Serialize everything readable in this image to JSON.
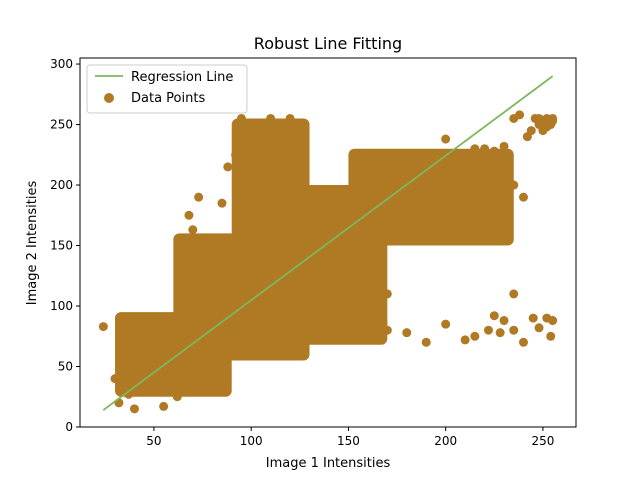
{
  "chart_data": {
    "type": "scatter",
    "title": "Robust Line Fitting",
    "xlabel": "Image 1 Intensities",
    "ylabel": "Image 2 Intensities",
    "xlim": [
      12,
      267
    ],
    "ylim": [
      0,
      305
    ],
    "xticks": [
      50,
      100,
      150,
      200,
      250
    ],
    "yticks": [
      0,
      50,
      100,
      150,
      200,
      250,
      300
    ],
    "grid": false,
    "legend_position": "top-left",
    "colors": {
      "points": "#b07a24",
      "line": "#7cb85c"
    },
    "series": [
      {
        "name": "Regression Line",
        "kind": "line",
        "x": [
          24,
          255
        ],
        "y": [
          14,
          290
        ]
      },
      {
        "name": "Data Points",
        "kind": "scatter",
        "core_regions": [
          {
            "x": [
              30,
              90
            ],
            "y": [
              25,
              95
            ]
          },
          {
            "x": [
              60,
              130
            ],
            "y": [
              55,
              160
            ]
          },
          {
            "x": [
              90,
              130
            ],
            "y": [
              140,
              255
            ]
          },
          {
            "x": [
              110,
              170
            ],
            "y": [
              80,
              200
            ]
          },
          {
            "x": [
              150,
              235
            ],
            "y": [
              150,
              230
            ]
          },
          {
            "x": [
              100,
              170
            ],
            "y": [
              68,
              92
            ]
          }
        ],
        "x": [
          24,
          30,
          33,
          38,
          40,
          45,
          48,
          52,
          55,
          58,
          62,
          64,
          70,
          72,
          75,
          80,
          85,
          88,
          90,
          95,
          100,
          105,
          108,
          112,
          115,
          118,
          120,
          125,
          128,
          130,
          135,
          140,
          145,
          148,
          150,
          155,
          160,
          165,
          170,
          175,
          180,
          185,
          190,
          195,
          200,
          205,
          210,
          215,
          220,
          225,
          230,
          235,
          240,
          242,
          244,
          246,
          248,
          250,
          252,
          254,
          255,
          160,
          170,
          180,
          190,
          200,
          210,
          215,
          222,
          228,
          235,
          240,
          248,
          252,
          255,
          254,
          130,
          140,
          145,
          125,
          160,
          170,
          73,
          70,
          68,
          85,
          235,
          245,
          230,
          225,
          220,
          210,
          200,
          235,
          238,
          248,
          252,
          255,
          250,
          215,
          205,
          95,
          100,
          110,
          120,
          92,
          88,
          40,
          55,
          62,
          60,
          80,
          85,
          37,
          32
        ],
        "y": [
          83,
          40,
          50,
          55,
          35,
          60,
          72,
          30,
          17,
          40,
          25,
          60,
          45,
          80,
          35,
          70,
          95,
          110,
          150,
          130,
          125,
          140,
          160,
          110,
          120,
          115,
          130,
          140,
          150,
          145,
          165,
          160,
          170,
          175,
          180,
          185,
          190,
          188,
          192,
          200,
          210,
          205,
          215,
          212,
          220,
          215,
          225,
          218,
          230,
          228,
          232,
          200,
          190,
          240,
          245,
          255,
          250,
          252,
          248,
          250,
          255,
          75,
          80,
          78,
          70,
          85,
          72,
          75,
          80,
          78,
          80,
          70,
          82,
          90,
          88,
          75,
          180,
          175,
          185,
          240,
          170,
          110,
          190,
          163,
          175,
          185,
          110,
          90,
          88,
          92,
          185,
          200,
          238,
          255,
          258,
          255,
          255,
          253,
          245,
          230,
          210,
          255,
          250,
          255,
          255,
          225,
          215,
          15,
          58,
          80,
          45,
          60,
          55,
          27,
          20
        ]
      }
    ]
  }
}
